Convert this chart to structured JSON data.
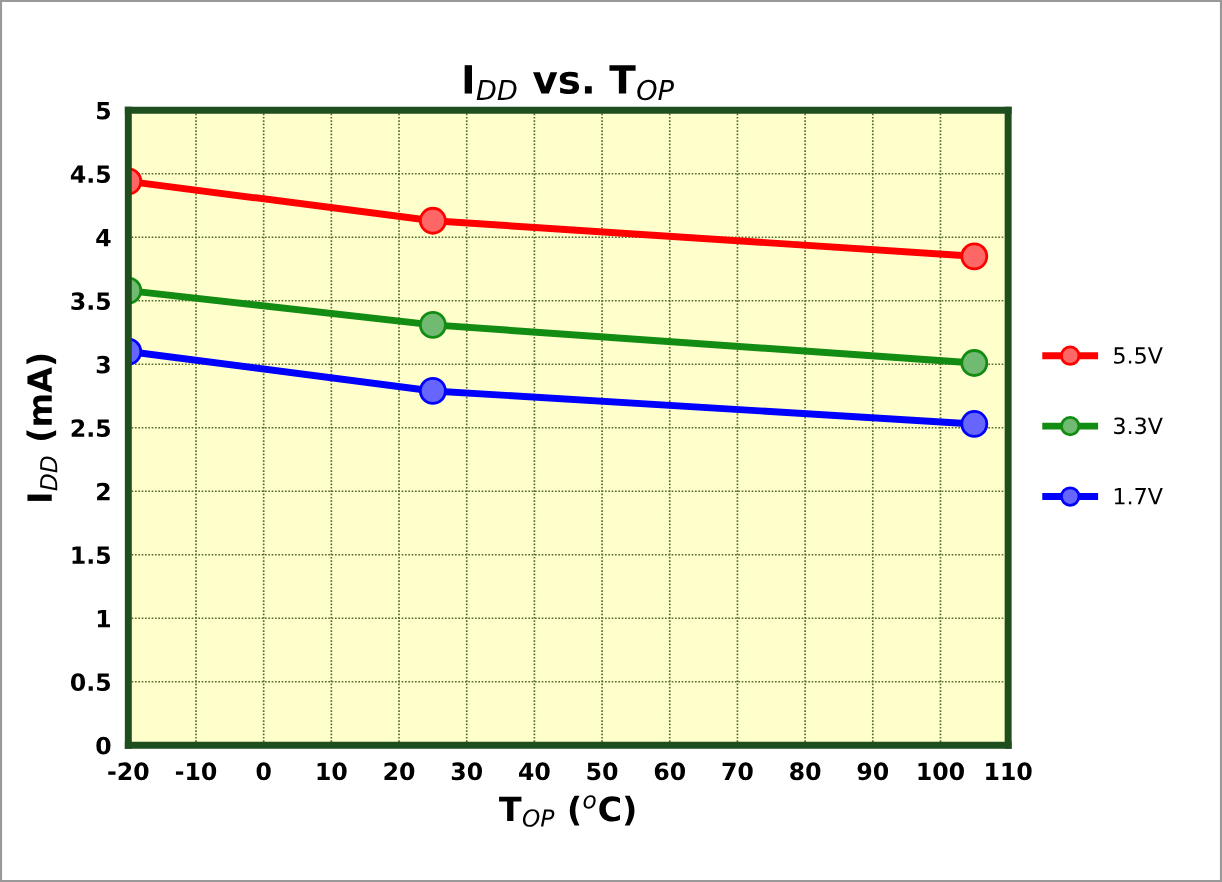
{
  "chart_data": {
    "type": "line",
    "title": "I$_{DD}$ vs. T$_{OP}$",
    "xlabel": "T$_{OP}$ ($^{o}$C)",
    "ylabel": "I$_{DD}$ (mA)",
    "x": [
      -20,
      25,
      105
    ],
    "series": [
      {
        "name": "5.5V",
        "color": "#ff0000",
        "values": [
          4.44,
          4.13,
          3.85
        ]
      },
      {
        "name": "3.3V",
        "color": "#128c12",
        "values": [
          3.58,
          3.31,
          3.01
        ]
      },
      {
        "name": "1.7V",
        "color": "#0000ff",
        "values": [
          3.1,
          2.79,
          2.53
        ]
      }
    ],
    "xlim": [
      -20,
      110
    ],
    "xticks": [
      -20,
      -10,
      0,
      10,
      20,
      30,
      40,
      50,
      60,
      70,
      80,
      90,
      100,
      110
    ],
    "ylim": [
      0,
      5
    ],
    "yticks": [
      0,
      {
        "value": 0.5,
        "label": "0.5"
      },
      1,
      {
        "value": 1.5,
        "label": "1.5"
      },
      2,
      {
        "value": 2.5,
        "label": "2.5"
      },
      3,
      {
        "value": 3.5,
        "label": "3.5"
      },
      4,
      {
        "value": 4.5,
        "label": "4.5"
      },
      5
    ],
    "grid": true,
    "legend": "right",
    "marker": "circle",
    "line_style": "solid"
  }
}
